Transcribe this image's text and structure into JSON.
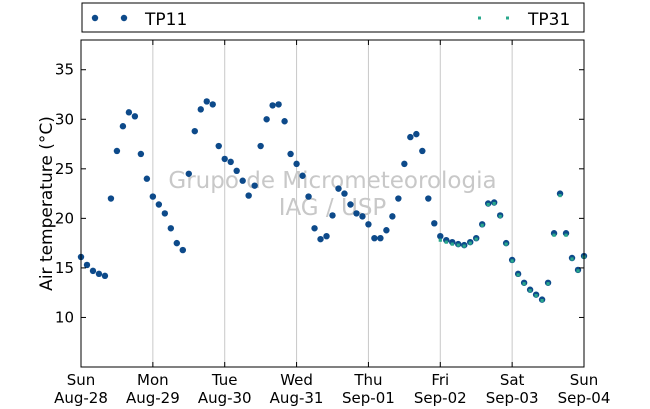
{
  "chart_data": {
    "type": "scatter",
    "ylabel": "Air temperature (°C)",
    "xlabel": "",
    "ylim": [
      5,
      38
    ],
    "xlim": [
      "2016-08-28 00:00",
      "2016-09-04 00:00"
    ],
    "yticks": [
      10,
      15,
      20,
      25,
      30,
      35
    ],
    "xticks": [
      {
        "day": "Sun",
        "date": "Aug-28"
      },
      {
        "day": "Mon",
        "date": "Aug-29"
      },
      {
        "day": "Tue",
        "date": "Aug-30"
      },
      {
        "day": "Wed",
        "date": "Aug-31"
      },
      {
        "day": "Thu",
        "date": "Sep-01"
      },
      {
        "day": "Fri",
        "date": "Sep-02"
      },
      {
        "day": "Sat",
        "date": "Sep-03"
      },
      {
        "day": "Sun",
        "date": "Sep-04"
      }
    ],
    "grid": "vertical lines at day boundaries",
    "legend": {
      "placement": "top, above plot",
      "mode": "expanded"
    },
    "watermark": [
      "Grupo de Micrometeorologia",
      "IAG / USP"
    ],
    "series": [
      {
        "name": "TP11",
        "color": "#0d4a8a",
        "marker": "circle",
        "x": [
          "2016-08-28 00:00",
          "2016-08-28 02:00",
          "2016-08-28 04:00",
          "2016-08-28 06:00",
          "2016-08-28 08:00",
          "2016-08-28 10:00",
          "2016-08-28 12:00",
          "2016-08-28 14:00",
          "2016-08-28 16:00",
          "2016-08-28 18:00",
          "2016-08-28 20:00",
          "2016-08-28 22:00",
          "2016-08-29 00:00",
          "2016-08-29 02:00",
          "2016-08-29 04:00",
          "2016-08-29 06:00",
          "2016-08-29 08:00",
          "2016-08-29 10:00",
          "2016-08-29 12:00",
          "2016-08-29 14:00",
          "2016-08-29 16:00",
          "2016-08-29 18:00",
          "2016-08-29 20:00",
          "2016-08-29 22:00",
          "2016-08-30 00:00",
          "2016-08-30 02:00",
          "2016-08-30 04:00",
          "2016-08-30 06:00",
          "2016-08-30 08:00",
          "2016-08-30 10:00",
          "2016-08-30 12:00",
          "2016-08-30 14:00",
          "2016-08-30 16:00",
          "2016-08-30 18:00",
          "2016-08-30 20:00",
          "2016-08-30 22:00",
          "2016-08-31 00:00",
          "2016-08-31 02:00",
          "2016-08-31 04:00",
          "2016-08-31 06:00",
          "2016-08-31 08:00",
          "2016-08-31 10:00",
          "2016-08-31 12:00",
          "2016-08-31 14:00",
          "2016-08-31 16:00",
          "2016-08-31 18:00",
          "2016-08-31 20:00",
          "2016-08-31 22:00",
          "2016-09-01 00:00",
          "2016-09-01 02:00",
          "2016-09-01 04:00",
          "2016-09-01 06:00",
          "2016-09-01 08:00",
          "2016-09-01 10:00",
          "2016-09-01 12:00",
          "2016-09-01 14:00",
          "2016-09-01 16:00",
          "2016-09-01 18:00",
          "2016-09-01 20:00",
          "2016-09-01 22:00",
          "2016-09-02 00:00",
          "2016-09-02 02:00",
          "2016-09-02 04:00",
          "2016-09-02 06:00",
          "2016-09-02 08:00",
          "2016-09-02 10:00",
          "2016-09-02 12:00",
          "2016-09-02 14:00",
          "2016-09-02 16:00",
          "2016-09-02 18:00",
          "2016-09-02 20:00",
          "2016-09-02 22:00",
          "2016-09-03 00:00",
          "2016-09-03 02:00",
          "2016-09-03 04:00",
          "2016-09-03 06:00",
          "2016-09-03 08:00",
          "2016-09-03 10:00",
          "2016-09-03 12:00",
          "2016-09-03 14:00",
          "2016-09-03 16:00",
          "2016-09-03 18:00",
          "2016-09-03 20:00",
          "2016-09-03 22:00",
          "2016-09-04 00:00"
        ],
        "y": [
          16.1,
          15.3,
          14.7,
          14.4,
          14.2,
          22.0,
          26.8,
          29.3,
          30.7,
          30.3,
          26.5,
          24.0,
          22.2,
          21.4,
          20.5,
          19.0,
          17.5,
          16.8,
          24.5,
          28.8,
          31.0,
          31.8,
          31.5,
          27.3,
          26.0,
          25.7,
          24.8,
          23.8,
          22.3,
          23.3,
          27.3,
          30.0,
          31.4,
          31.5,
          29.8,
          26.5,
          25.5,
          24.3,
          22.2,
          19.0,
          17.9,
          18.2,
          20.3,
          23.0,
          22.5,
          21.4,
          20.5,
          20.2,
          19.4,
          18.0,
          18.0,
          18.8,
          20.2,
          22.0,
          25.5,
          28.2,
          28.5,
          26.8,
          22.0,
          19.5,
          18.2,
          17.8,
          17.6,
          17.4,
          17.3,
          17.6,
          18.0,
          19.4,
          21.5,
          21.6,
          20.3,
          17.5,
          15.8,
          14.4,
          13.5,
          12.8,
          12.3,
          11.8,
          13.5,
          18.5,
          22.5,
          18.5,
          16.0,
          14.8,
          16.2
        ]
      },
      {
        "name": "TP31",
        "color": "#2aa88c",
        "marker": "square",
        "x": [
          "2016-09-02 00:00",
          "2016-09-02 02:00",
          "2016-09-02 04:00",
          "2016-09-02 06:00",
          "2016-09-02 08:00",
          "2016-09-02 10:00",
          "2016-09-02 12:00",
          "2016-09-02 14:00",
          "2016-09-02 16:00",
          "2016-09-02 18:00",
          "2016-09-02 20:00",
          "2016-09-02 22:00",
          "2016-09-03 00:00",
          "2016-09-03 02:00",
          "2016-09-03 04:00",
          "2016-09-03 06:00",
          "2016-09-03 08:00",
          "2016-09-03 10:00",
          "2016-09-03 12:00",
          "2016-09-03 14:00",
          "2016-09-03 16:00",
          "2016-09-03 18:00",
          "2016-09-03 20:00",
          "2016-09-03 22:00",
          "2016-09-04 00:00"
        ],
        "y": [
          17.8,
          17.6,
          17.4,
          17.3,
          17.2,
          17.5,
          17.9,
          19.3,
          21.4,
          21.5,
          20.2,
          17.4,
          15.7,
          14.3,
          13.4,
          12.7,
          12.2,
          11.7,
          13.4,
          18.3,
          22.3,
          18.3,
          15.9,
          14.7,
          16.1
        ]
      }
    ]
  }
}
